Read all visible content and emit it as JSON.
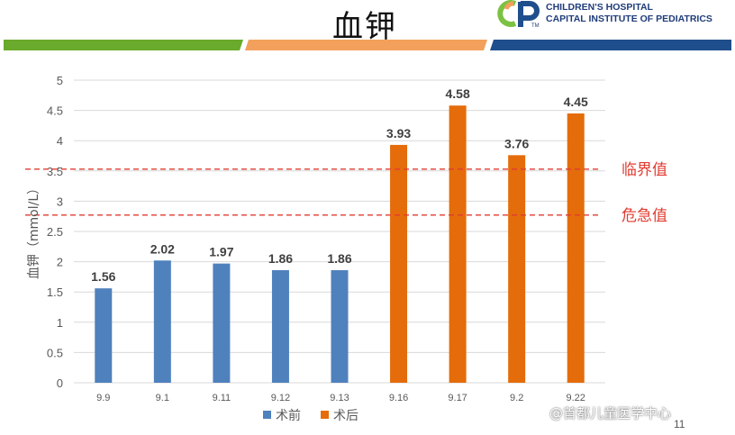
{
  "header": {
    "title": "血钾",
    "logo_line1": "CHILDREN'S HOSPITAL",
    "logo_line2": "CAPITAL INSTITUTE OF PEDIATRICS",
    "logo_tm": "TM"
  },
  "colors": {
    "band_green": "#6aaa2c",
    "band_orange": "#f2a05c",
    "band_blue": "#1f4e8c",
    "bar_pre": "#4f81bd",
    "bar_post": "#e46c0a",
    "reference_line": "#e03c31"
  },
  "chart_data": {
    "type": "bar",
    "title": "",
    "ylabel": "血钾（mmol/L）",
    "xlabel": "",
    "ylim": [
      0,
      5
    ],
    "yticks": [
      "0",
      "0.5",
      "1",
      "1.5",
      "2",
      "2.5",
      "3",
      "3.5",
      "4",
      "4.5",
      "5"
    ],
    "grid": true,
    "categories": [
      "9.9",
      "9.1",
      "9.11",
      "9.12",
      "9.13",
      "9.16",
      "9.17",
      "9.2",
      "9.22"
    ],
    "series": [
      {
        "name": "术前",
        "color": "#4f81bd",
        "values": [
          1.56,
          2.02,
          1.97,
          1.86,
          1.86,
          null,
          null,
          null,
          null
        ],
        "labels": [
          "1.56",
          "2.02",
          "1.97",
          "1.86",
          "1.86",
          "",
          "",
          "",
          ""
        ]
      },
      {
        "name": "术后",
        "color": "#e46c0a",
        "values": [
          null,
          null,
          null,
          null,
          null,
          3.93,
          4.58,
          3.76,
          4.45
        ],
        "labels": [
          "",
          "",
          "",
          "",
          "",
          "3.93",
          "4.58",
          "3.76",
          "4.45"
        ]
      }
    ],
    "reference_lines": [
      {
        "label": "临界值",
        "value": 3.53
      },
      {
        "label": "危急值",
        "value": 2.77
      }
    ],
    "legend_position": "bottom-center"
  },
  "footer": {
    "watermark": "@首都儿童医学中心",
    "page_number": "11"
  }
}
